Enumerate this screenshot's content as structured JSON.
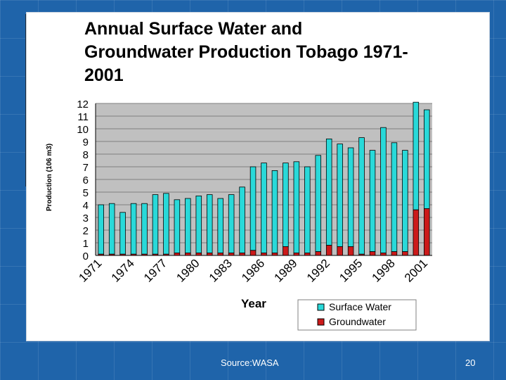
{
  "footer": {
    "source": "Source:WASA",
    "page_number": "20"
  },
  "colors": {
    "background": "#1f64aa",
    "plot_area": "#c0c0c0",
    "surface_water": "#29d9d9",
    "groundwater": "#cc1a1a"
  },
  "chart_data": {
    "type": "bar",
    "stacked": true,
    "title": "Annual Surface Water and Groundwater Production Tobago 1971-2001",
    "title_lines": [
      "Annual Surface Water and",
      "Groundwater Production Tobago 1971-",
      "2001"
    ],
    "xlabel": "Year",
    "ylabel": "Production (106 m3)",
    "ylim": [
      0,
      12
    ],
    "yticks": [
      0,
      1,
      2,
      3,
      4,
      5,
      6,
      7,
      8,
      9,
      10,
      11,
      12
    ],
    "grid": true,
    "legend_position": "bottom-right",
    "categories": [
      "1971",
      "1972",
      "1973",
      "1974",
      "1975",
      "1976",
      "1977",
      "1978",
      "1979",
      "1980",
      "1981",
      "1982",
      "1983",
      "1984",
      "1985",
      "1986",
      "1987",
      "1988",
      "1989",
      "1990",
      "1991",
      "1992",
      "1993",
      "1994",
      "1995",
      "1996",
      "1997",
      "1998",
      "1999",
      "2000",
      "2001"
    ],
    "xtick_labels": [
      "1971",
      "1974",
      "1977",
      "1980",
      "1983",
      "1986",
      "1989",
      "1992",
      "1995",
      "1998",
      "2001"
    ],
    "series": [
      {
        "name": "Surface Water",
        "totals": [
          4.0,
          4.1,
          3.4,
          4.1,
          4.1,
          4.8,
          4.9,
          4.4,
          4.5,
          4.7,
          4.8,
          4.5,
          4.8,
          5.4,
          7.0,
          7.3,
          6.7,
          7.3,
          7.4,
          7.0,
          7.9,
          9.2,
          8.8,
          8.5,
          9.3,
          8.3,
          10.1,
          8.9,
          8.3,
          12.1,
          11.5
        ]
      },
      {
        "name": "Groundwater",
        "values": [
          0.1,
          0.1,
          0.1,
          0.1,
          0.1,
          0.1,
          0.1,
          0.2,
          0.2,
          0.2,
          0.2,
          0.2,
          0.2,
          0.2,
          0.4,
          0.2,
          0.2,
          0.7,
          0.2,
          0.2,
          0.3,
          0.8,
          0.7,
          0.7,
          0.1,
          0.3,
          0.2,
          0.3,
          0.3,
          3.6,
          3.7
        ]
      }
    ]
  }
}
